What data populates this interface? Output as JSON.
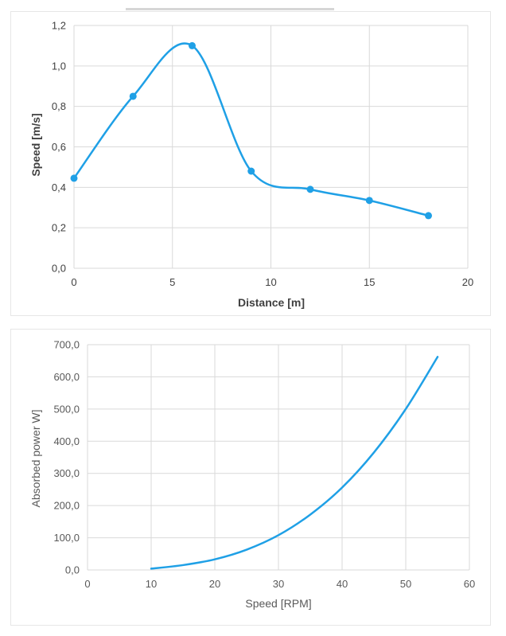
{
  "chart_data": [
    {
      "type": "line",
      "smoothed": true,
      "markers": true,
      "xlabel": "Distance [m]",
      "ylabel": "Speed [m/s]",
      "xlim": [
        0,
        20
      ],
      "ylim": [
        0,
        1.2
      ],
      "x_ticks": [
        "0",
        "5",
        "10",
        "15",
        "20"
      ],
      "y_ticks": [
        "0,0",
        "0,2",
        "0,4",
        "0,6",
        "0,8",
        "1,0",
        "1,2"
      ],
      "grid": true,
      "series": [
        {
          "color": "#1fa0e6",
          "x": [
            0,
            3,
            6,
            9,
            12,
            15,
            18
          ],
          "y": [
            0.445,
            0.85,
            1.1,
            0.48,
            0.39,
            0.335,
            0.26
          ]
        }
      ]
    },
    {
      "type": "line",
      "smoothed": true,
      "markers": false,
      "xlabel": "Speed [RPM]",
      "ylabel": "Absorbed power W]",
      "xlim": [
        0,
        60
      ],
      "ylim": [
        0,
        700
      ],
      "x_ticks": [
        "0",
        "10",
        "20",
        "30",
        "40",
        "50",
        "60"
      ],
      "y_ticks": [
        "0,0",
        "100,0",
        "200,0",
        "300,0",
        "400,0",
        "500,0",
        "600,0",
        "700,0"
      ],
      "grid": true,
      "series": [
        {
          "color": "#1fa0e6",
          "x": [
            10,
            15,
            20,
            25,
            30,
            35,
            40,
            45,
            50,
            55
          ],
          "y": [
            4,
            15,
            33,
            63,
            108,
            172,
            256,
            365,
            500,
            662
          ]
        }
      ]
    }
  ]
}
